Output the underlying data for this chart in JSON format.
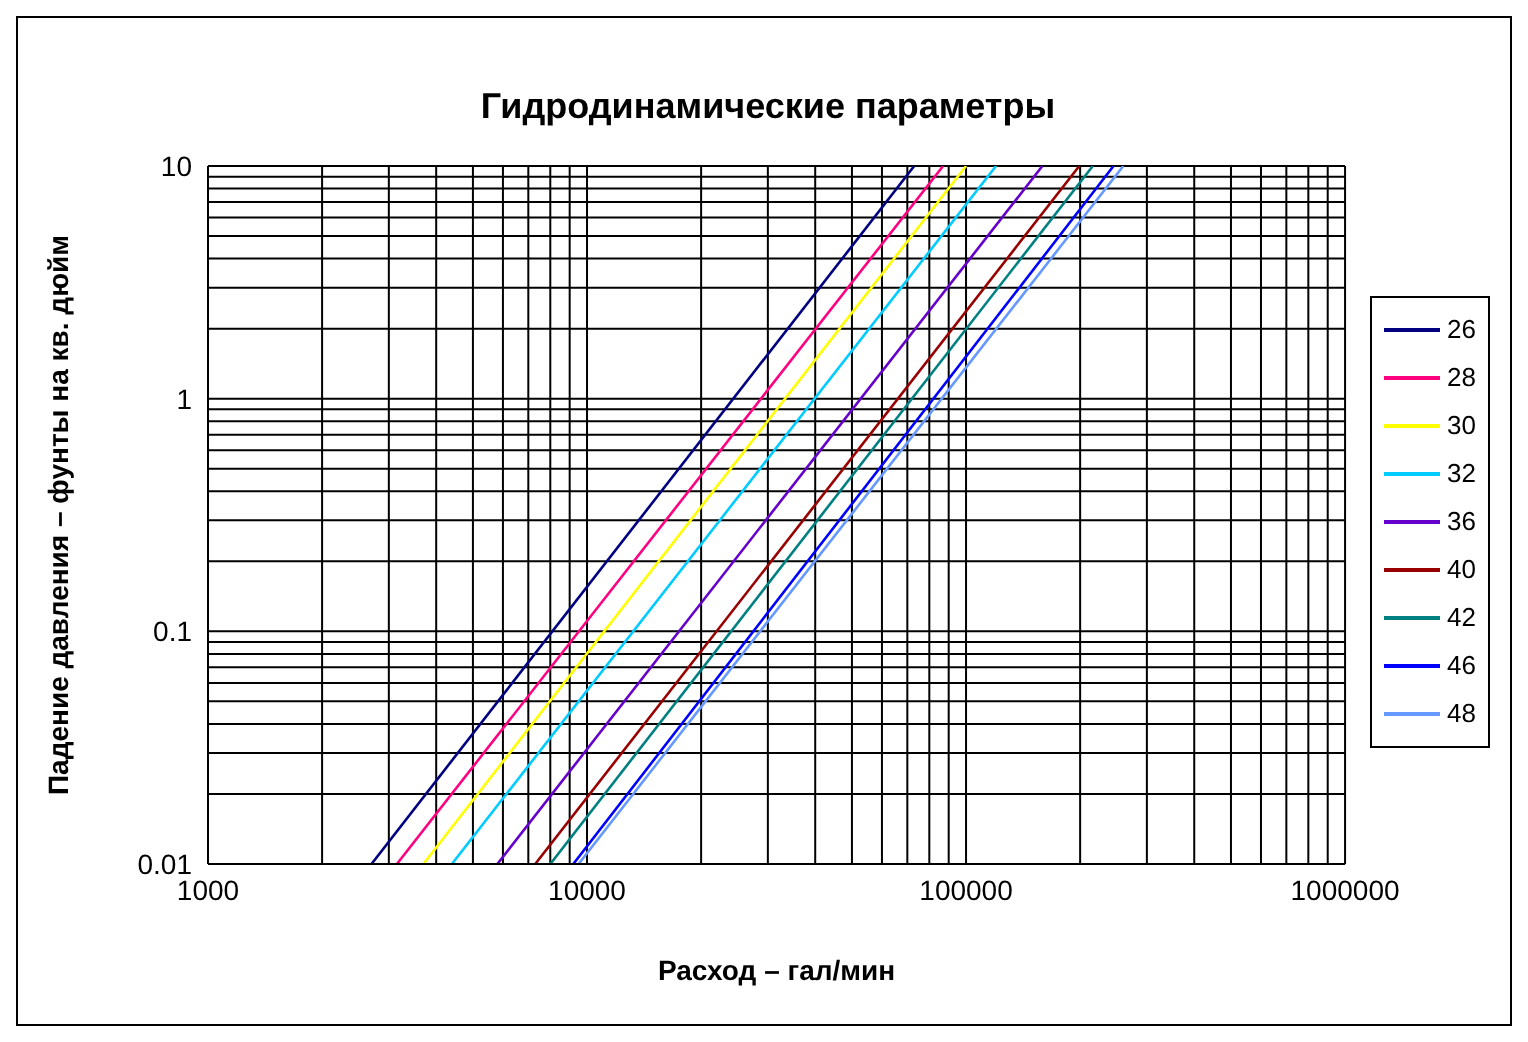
{
  "chart_data": {
    "type": "line",
    "title": "Гидродинамические параметры",
    "xlabel": "Расход – гал/мин",
    "ylabel": "Падение давления – фунты на кв. дюйм",
    "log": "xy",
    "grid": true,
    "legend": "right",
    "marker": "none",
    "line_style": "solid",
    "xlim": [
      1000,
      1000000
    ],
    "ylim": [
      0.01,
      10
    ],
    "xticks": [
      1000,
      {
        "value": 2000,
        "label": null
      },
      {
        "value": 3000,
        "label": null
      },
      {
        "value": 4000,
        "label": null
      },
      {
        "value": 5000,
        "label": null
      },
      {
        "value": 6000,
        "label": null
      },
      {
        "value": 7000,
        "label": null
      },
      {
        "value": 8000,
        "label": null
      },
      {
        "value": 9000,
        "label": null
      },
      10000,
      {
        "value": 20000,
        "label": null
      },
      {
        "value": 30000,
        "label": null
      },
      {
        "value": 40000,
        "label": null
      },
      {
        "value": 50000,
        "label": null
      },
      {
        "value": 60000,
        "label": null
      },
      {
        "value": 70000,
        "label": null
      },
      {
        "value": 80000,
        "label": null
      },
      {
        "value": 90000,
        "label": null
      },
      100000,
      {
        "value": 200000,
        "label": null
      },
      {
        "value": 300000,
        "label": null
      },
      {
        "value": 400000,
        "label": null
      },
      {
        "value": 500000,
        "label": null
      },
      {
        "value": 600000,
        "label": null
      },
      {
        "value": 700000,
        "label": null
      },
      {
        "value": 800000,
        "label": null
      },
      {
        "value": 900000,
        "label": null
      },
      1000000
    ],
    "yticks": [
      0.01,
      {
        "value": 0.02,
        "label": null
      },
      {
        "value": 0.03,
        "label": null
      },
      {
        "value": 0.04,
        "label": null
      },
      {
        "value": 0.05,
        "label": null
      },
      {
        "value": 0.06,
        "label": null
      },
      {
        "value": 0.07,
        "label": null
      },
      {
        "value": 0.08,
        "label": null
      },
      {
        "value": 0.09,
        "label": null
      },
      0.1,
      {
        "value": 0.2,
        "label": null
      },
      {
        "value": 0.3,
        "label": null
      },
      {
        "value": 0.4,
        "label": null
      },
      {
        "value": 0.5,
        "label": null
      },
      {
        "value": 0.6,
        "label": null
      },
      {
        "value": 0.7,
        "label": null
      },
      {
        "value": 0.8,
        "label": null
      },
      {
        "value": 0.9,
        "label": null
      },
      1,
      {
        "value": 2,
        "label": null
      },
      {
        "value": 3,
        "label": null
      },
      {
        "value": 4,
        "label": null
      },
      {
        "value": 5,
        "label": null
      },
      {
        "value": 6,
        "label": null
      },
      {
        "value": 7,
        "label": null
      },
      {
        "value": 8,
        "label": null
      },
      {
        "value": 9,
        "label": null
      },
      10
    ],
    "series": [
      {
        "name": "26",
        "color": "#000080",
        "x": [
          2700,
          73000
        ],
        "values": [
          0.01,
          10
        ]
      },
      {
        "name": "28",
        "color": "#ff0080",
        "x": [
          3150,
          87000
        ],
        "values": [
          0.01,
          10
        ]
      },
      {
        "name": "30",
        "color": "#ffff00",
        "x": [
          3700,
          100000
        ],
        "values": [
          0.01,
          10
        ]
      },
      {
        "name": "32",
        "color": "#00ccff",
        "x": [
          4400,
          120000
        ],
        "values": [
          0.01,
          10
        ]
      },
      {
        "name": "36",
        "color": "#6600cc",
        "x": [
          5800,
          159000
        ],
        "values": [
          0.01,
          10
        ]
      },
      {
        "name": "40",
        "color": "#990000",
        "x": [
          7300,
          199000
        ],
        "values": [
          0.01,
          10
        ]
      },
      {
        "name": "42",
        "color": "#008080",
        "x": [
          8000,
          216000
        ],
        "values": [
          0.01,
          10
        ]
      },
      {
        "name": "46",
        "color": "#0000ff",
        "x": [
          9200,
          245000
        ],
        "values": [
          0.01,
          10
        ]
      },
      {
        "name": "48",
        "color": "#6699ff",
        "x": [
          9500,
          260000
        ],
        "values": [
          0.01,
          10
        ]
      }
    ]
  }
}
